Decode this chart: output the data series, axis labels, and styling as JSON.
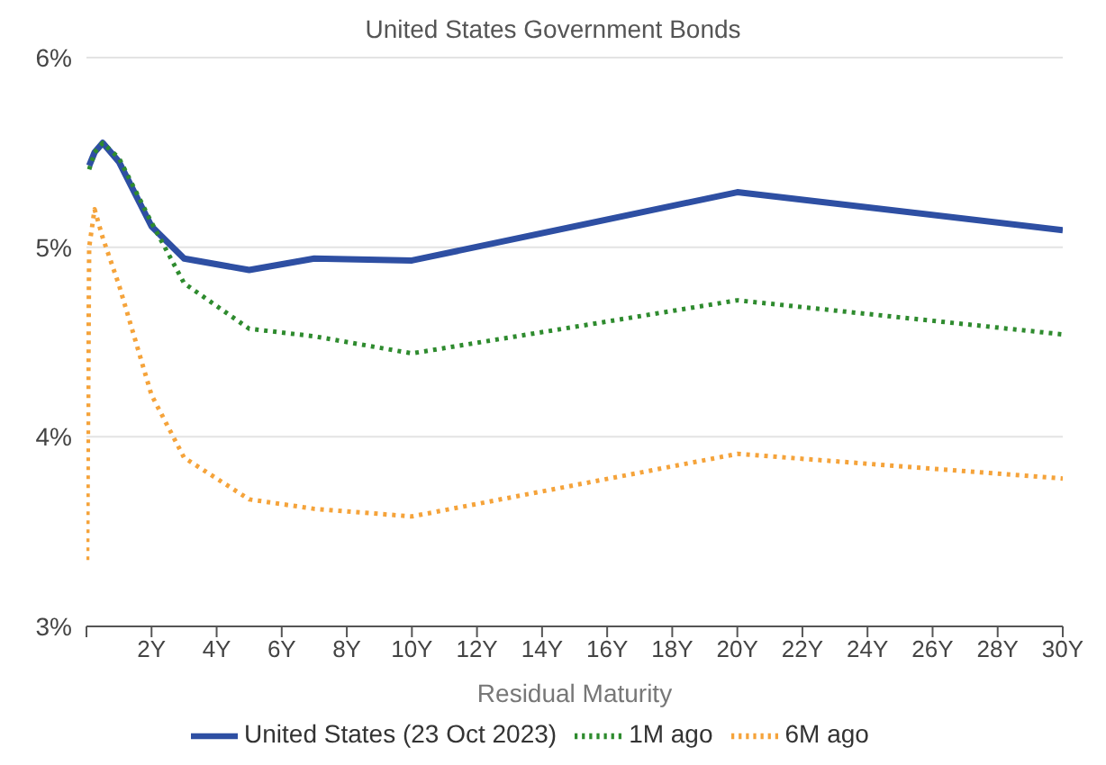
{
  "chart_data": {
    "type": "line",
    "title": "United States Government Bonds",
    "xlabel": "Residual Maturity",
    "xlim": [
      0,
      30
    ],
    "xticks": [
      {
        "value": 0,
        "label": null
      },
      {
        "value": 2,
        "label": "2Y"
      },
      {
        "value": 4,
        "label": "4Y"
      },
      {
        "value": 6,
        "label": "6Y"
      },
      {
        "value": 8,
        "label": "8Y"
      },
      {
        "value": 10,
        "label": "10Y"
      },
      {
        "value": 12,
        "label": "12Y"
      },
      {
        "value": 14,
        "label": "14Y"
      },
      {
        "value": 16,
        "label": "16Y"
      },
      {
        "value": 18,
        "label": "18Y"
      },
      {
        "value": 20,
        "label": "20Y"
      },
      {
        "value": 22,
        "label": "22Y"
      },
      {
        "value": 24,
        "label": "24Y"
      },
      {
        "value": 26,
        "label": "26Y"
      },
      {
        "value": 28,
        "label": "28Y"
      },
      {
        "value": 30,
        "label": "30Y"
      }
    ],
    "ylim": [
      3,
      6
    ],
    "yticks": [
      {
        "value": 3,
        "label": "3%"
      },
      {
        "value": 4,
        "label": "4%"
      },
      {
        "value": 5,
        "label": "5%"
      },
      {
        "value": 6,
        "label": "6%"
      }
    ],
    "grid": "y",
    "legend": "bottom",
    "marker": "none",
    "series": [
      {
        "name": "United States (23 Oct 2023)",
        "color": "#2e4fa3",
        "line_style": "solid",
        "x": [
          0.083,
          0.25,
          0.5,
          1,
          2,
          3,
          5,
          7,
          10,
          20,
          30
        ],
        "values": [
          5.43,
          5.5,
          5.55,
          5.45,
          5.11,
          4.94,
          4.88,
          4.94,
          4.93,
          5.29,
          5.09
        ]
      },
      {
        "name": "1M ago",
        "color": "#2e8b2e",
        "line_style": "dotted",
        "x": [
          0.083,
          0.25,
          0.5,
          1,
          2,
          3,
          5,
          7,
          10,
          20,
          30
        ],
        "values": [
          5.41,
          5.5,
          5.55,
          5.47,
          5.13,
          4.81,
          4.57,
          4.53,
          4.44,
          4.72,
          4.54
        ]
      },
      {
        "name": "6M ago",
        "color": "#f5a33a",
        "line_style": "dotted",
        "x": [
          0.02,
          0.083,
          0.25,
          0.5,
          1,
          2,
          3,
          5,
          7,
          10,
          20,
          30
        ],
        "values": [
          3.35,
          5.0,
          5.2,
          5.05,
          4.8,
          4.22,
          3.89,
          3.67,
          3.62,
          3.58,
          3.91,
          3.78
        ]
      }
    ]
  }
}
